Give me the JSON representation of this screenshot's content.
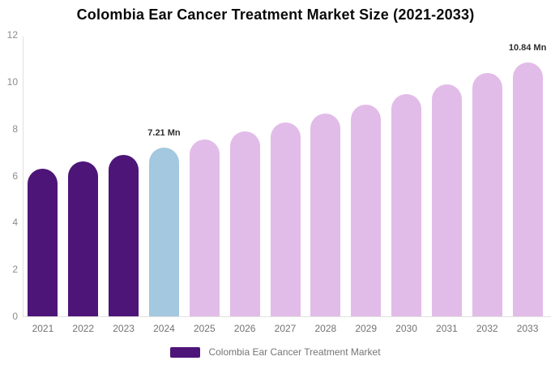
{
  "title": "Colombia Ear Cancer Treatment Market Size (2021-2033)",
  "legend": {
    "label": "Colombia Ear Cancer Treatment Market",
    "swatch_color": "#4E1579"
  },
  "colors": {
    "historical_bar": "#4E1579",
    "base_year_bar": "#A3C8DF",
    "forecast_bar": "#E2BCE8",
    "axis_line": "#E1E1E1",
    "y_tick_text": "#8C8C8C",
    "x_tick_text": "#737373",
    "annotation_text": "#2E2E2E",
    "legend_text": "#757575",
    "title_text": "#0A0A0A"
  },
  "chart_data": {
    "type": "bar",
    "title": "Colombia Ear Cancer Treatment Market Size (2021-2033)",
    "unit": "Mn",
    "categories": [
      "2021",
      "2022",
      "2023",
      "2024",
      "2025",
      "2026",
      "2027",
      "2028",
      "2029",
      "2030",
      "2031",
      "2032",
      "2033"
    ],
    "series": [
      {
        "name": "Colombia Ear Cancer Treatment Market",
        "values": [
          6.29,
          6.59,
          6.89,
          7.21,
          7.54,
          7.89,
          8.26,
          8.64,
          9.04,
          9.46,
          9.9,
          10.36,
          10.84
        ]
      }
    ],
    "bar_colors": [
      "#4E1579",
      "#4E1579",
      "#4E1579",
      "#A3C8DF",
      "#E2BCE8",
      "#E2BCE8",
      "#E2BCE8",
      "#E2BCE8",
      "#E2BCE8",
      "#E2BCE8",
      "#E2BCE8",
      "#E2BCE8",
      "#E2BCE8"
    ],
    "ylim": [
      0,
      12
    ],
    "yticks": [
      0,
      2,
      4,
      6,
      8,
      10,
      12
    ],
    "grid": false,
    "legend_position": "bottom",
    "annotations": [
      {
        "category": "2024",
        "label": "7.21 Mn"
      },
      {
        "category": "2033",
        "label": "10.84 Mn"
      }
    ]
  }
}
